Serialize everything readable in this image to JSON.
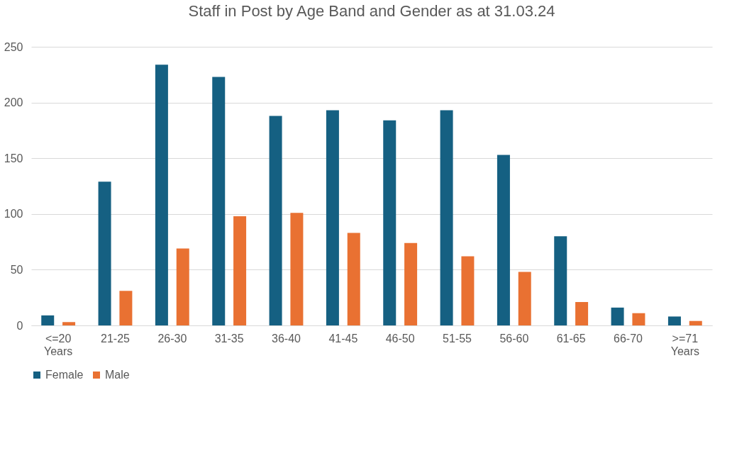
{
  "chart_data": {
    "type": "bar",
    "title": "Staff in Post by Age Band and Gender as at 31.03.24",
    "categories": [
      "<=20 Years",
      "21-25",
      "26-30",
      "31-35",
      "36-40",
      "41-45",
      "46-50",
      "51-55",
      "56-60",
      "61-65",
      "66-70",
      ">=71 Years"
    ],
    "series": [
      {
        "name": "Female",
        "color": "#156082",
        "values": [
          9,
          129,
          234,
          223,
          188,
          193,
          184,
          193,
          153,
          80,
          16,
          8
        ]
      },
      {
        "name": "Male",
        "color": "#e97132",
        "values": [
          3,
          31,
          69,
          98,
          101,
          83,
          74,
          62,
          48,
          21,
          11,
          4
        ]
      }
    ],
    "ylim": [
      0,
      250
    ],
    "yticks": [
      0,
      50,
      100,
      150,
      200,
      250
    ],
    "grid": "y",
    "legend": "bottom"
  }
}
